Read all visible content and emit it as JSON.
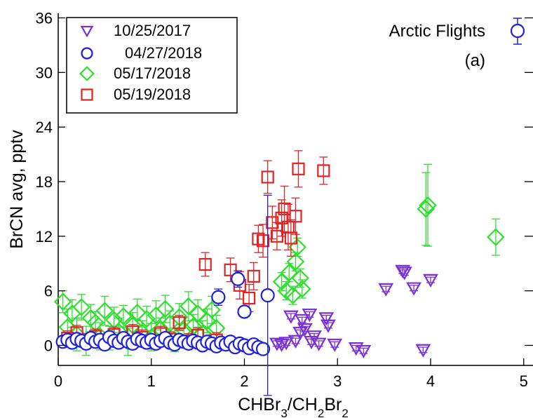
{
  "chart_data": {
    "type": "scatter",
    "xlim": [
      0,
      5.1
    ],
    "ylim": [
      -2.2,
      36.5
    ],
    "x_ticks": [
      "0",
      "1",
      "2",
      "3",
      "4",
      "5"
    ],
    "y_ticks": [
      "0",
      "6",
      "12",
      "18",
      "24",
      "30",
      "36"
    ],
    "xlabel": {
      "base1": "CHBr",
      "sub1": "3",
      "mid": "/CH",
      "sub2": "2",
      "base2": "Br",
      "sub3": "2"
    },
    "ylabel": "BrCN avg, pptv",
    "grid": false,
    "legend_position": "top-left",
    "annotation_text": "Arctic Flights",
    "panel_label": "(a)",
    "series": [
      {
        "name": "10/25/2017",
        "marker": "triangle-down",
        "color": "#7b2fd6",
        "points": [
          [
            2.35,
            0.2,
            0.3
          ],
          [
            2.4,
            0.1,
            0.3
          ],
          [
            2.45,
            0.3,
            0.3
          ],
          [
            2.5,
            3.2,
            0.3
          ],
          [
            2.55,
            0.5,
            0.3
          ],
          [
            2.6,
            1.4,
            0.3
          ],
          [
            2.62,
            2.8,
            0.3
          ],
          [
            2.65,
            1.8,
            0.3
          ],
          [
            2.7,
            3.4,
            0.3
          ],
          [
            2.72,
            0.4,
            0.3
          ],
          [
            2.75,
            1.0,
            0.3
          ],
          [
            2.8,
            0.2,
            0.3
          ],
          [
            2.88,
            3.0,
            0.3
          ],
          [
            2.9,
            2.2,
            0.3
          ],
          [
            2.97,
            0.1,
            0.3
          ],
          [
            3.2,
            -0.3,
            0.3
          ],
          [
            3.28,
            -0.6,
            0.3
          ],
          [
            3.52,
            6.2,
            0.3
          ],
          [
            3.7,
            8.2,
            0.3
          ],
          [
            3.72,
            8.0,
            0.3
          ],
          [
            3.82,
            6.3,
            0.3
          ],
          [
            3.92,
            -0.5,
            0.3
          ],
          [
            4.0,
            7.2,
            0.3
          ]
        ]
      },
      {
        "name": "04/27/2018",
        "marker": "circle",
        "color": "#1f1fe0",
        "points": [
          [
            0.05,
            0.4,
            0.4
          ],
          [
            0.1,
            0.6,
            0.4
          ],
          [
            0.15,
            0.3,
            0.4
          ],
          [
            0.2,
            0.7,
            0.4
          ],
          [
            0.25,
            0.5,
            0.4
          ],
          [
            0.3,
            0.2,
            0.4
          ],
          [
            0.35,
            0.8,
            0.4
          ],
          [
            0.4,
            0.4,
            0.4
          ],
          [
            0.45,
            0.6,
            0.4
          ],
          [
            0.5,
            0.1,
            0.4
          ],
          [
            0.55,
            0.9,
            0.4
          ],
          [
            0.6,
            0.5,
            0.4
          ],
          [
            0.65,
            0.3,
            0.4
          ],
          [
            0.7,
            0.8,
            0.4
          ],
          [
            0.75,
            0.4,
            0.4
          ],
          [
            0.8,
            0.2,
            0.4
          ],
          [
            0.85,
            0.7,
            0.4
          ],
          [
            0.9,
            0.5,
            0.4
          ],
          [
            0.95,
            0.3,
            0.4
          ],
          [
            1.0,
            0.6,
            0.4
          ],
          [
            1.05,
            0.2,
            0.4
          ],
          [
            1.1,
            0.5,
            0.4
          ],
          [
            1.15,
            0.8,
            0.4
          ],
          [
            1.2,
            0.3,
            0.4
          ],
          [
            1.25,
            0.1,
            0.4
          ],
          [
            1.3,
            0.6,
            0.4
          ],
          [
            1.35,
            0.4,
            0.4
          ],
          [
            1.4,
            0.2,
            0.4
          ],
          [
            1.45,
            0.5,
            0.4
          ],
          [
            1.5,
            0.3,
            0.4
          ],
          [
            1.55,
            0.0,
            0.4
          ],
          [
            1.6,
            0.4,
            0.4
          ],
          [
            1.65,
            0.2,
            0.4
          ],
          [
            1.7,
            -0.1,
            0.4
          ],
          [
            1.75,
            0.3,
            0.4
          ],
          [
            1.8,
            0.1,
            0.4
          ],
          [
            1.85,
            0.4,
            0.4
          ],
          [
            1.9,
            -0.2,
            0.4
          ],
          [
            1.95,
            0.2,
            0.4
          ],
          [
            2.0,
            0.0,
            0.4
          ],
          [
            2.05,
            -0.3,
            0.4
          ],
          [
            2.1,
            0.1,
            0.4
          ],
          [
            2.15,
            -0.2,
            0.4
          ],
          [
            2.2,
            -0.4,
            0.4
          ],
          [
            1.72,
            5.3,
            0.9
          ],
          [
            1.93,
            7.3,
            0.9
          ],
          [
            2.0,
            3.7,
            0.6
          ],
          [
            2.25,
            5.5,
            11.0
          ]
        ]
      },
      {
        "name": "05/17/2018",
        "marker": "diamond",
        "color": "#2ee02e",
        "points": [
          [
            0.05,
            4.8,
            1.2
          ],
          [
            0.1,
            2.0,
            2.0
          ],
          [
            0.15,
            3.5,
            1.5
          ],
          [
            0.2,
            1.2,
            1.8
          ],
          [
            0.25,
            4.2,
            1.4
          ],
          [
            0.3,
            0.5,
            1.6
          ],
          [
            0.35,
            3.0,
            1.5
          ],
          [
            0.4,
            2.5,
            1.2
          ],
          [
            0.45,
            1.0,
            1.5
          ],
          [
            0.5,
            3.8,
            1.6
          ],
          [
            0.55,
            0.8,
            1.3
          ],
          [
            0.6,
            2.8,
            1.4
          ],
          [
            0.65,
            1.5,
            1.5
          ],
          [
            0.7,
            3.2,
            1.2
          ],
          [
            0.75,
            0.4,
            1.5
          ],
          [
            0.8,
            2.2,
            1.4
          ],
          [
            0.85,
            3.6,
            1.5
          ],
          [
            0.9,
            1.4,
            1.3
          ],
          [
            0.95,
            2.9,
            1.4
          ],
          [
            1.0,
            0.9,
            1.5
          ],
          [
            1.05,
            3.3,
            1.6
          ],
          [
            1.1,
            1.8,
            1.2
          ],
          [
            1.15,
            4.0,
            1.5
          ],
          [
            1.2,
            2.4,
            1.4
          ],
          [
            1.25,
            0.6,
            1.3
          ],
          [
            1.3,
            3.1,
            1.5
          ],
          [
            1.35,
            1.7,
            1.4
          ],
          [
            1.4,
            4.3,
            1.6
          ],
          [
            1.45,
            2.1,
            1.3
          ],
          [
            1.5,
            3.5,
            1.5
          ],
          [
            1.55,
            1.3,
            1.4
          ],
          [
            1.6,
            2.7,
            1.3
          ],
          [
            1.65,
            3.9,
            1.5
          ],
          [
            1.7,
            1.9,
            1.4
          ],
          [
            2.4,
            7.0,
            1.0
          ],
          [
            2.45,
            6.0,
            1.0
          ],
          [
            2.48,
            8.0,
            1.0
          ],
          [
            2.52,
            5.5,
            1.0
          ],
          [
            2.55,
            9.2,
            1.0
          ],
          [
            2.57,
            10.8,
            1.0
          ],
          [
            2.6,
            7.4,
            1.0
          ],
          [
            2.62,
            6.2,
            1.0
          ],
          [
            3.95,
            15.0,
            4.0
          ],
          [
            3.97,
            15.4,
            4.5
          ],
          [
            4.7,
            11.9,
            2.0
          ]
        ]
      },
      {
        "name": "05/19/2018",
        "marker": "square",
        "color": "#e02424",
        "points": [
          [
            0.1,
            0.8,
            0.8
          ],
          [
            0.2,
            1.4,
            0.8
          ],
          [
            0.3,
            0.5,
            0.8
          ],
          [
            0.4,
            1.0,
            0.8
          ],
          [
            0.5,
            0.3,
            0.8
          ],
          [
            0.6,
            1.2,
            0.8
          ],
          [
            0.7,
            0.6,
            0.8
          ],
          [
            0.8,
            1.5,
            0.8
          ],
          [
            0.9,
            0.9,
            0.8
          ],
          [
            1.0,
            0.4,
            0.8
          ],
          [
            1.1,
            1.3,
            0.8
          ],
          [
            1.2,
            0.7,
            0.8
          ],
          [
            1.3,
            2.5,
            0.8
          ],
          [
            1.4,
            0.5,
            0.8
          ],
          [
            1.5,
            1.1,
            0.8
          ],
          [
            1.58,
            8.9,
            1.3
          ],
          [
            1.7,
            0.6,
            0.8
          ],
          [
            1.85,
            8.3,
            1.3
          ],
          [
            1.95,
            6.6,
            1.5
          ],
          [
            2.05,
            5.2,
            1.5
          ],
          [
            2.1,
            7.6,
            1.5
          ],
          [
            2.15,
            11.7,
            1.5
          ],
          [
            2.2,
            11.5,
            1.8
          ],
          [
            2.25,
            18.5,
            1.8
          ],
          [
            2.3,
            13.5,
            1.8
          ],
          [
            2.35,
            12.0,
            1.5
          ],
          [
            2.4,
            14.0,
            2.0
          ],
          [
            2.43,
            15.0,
            2.5
          ],
          [
            2.47,
            13.0,
            2.5
          ],
          [
            2.5,
            11.8,
            2.0
          ],
          [
            2.55,
            14.2,
            2.0
          ],
          [
            2.58,
            19.4,
            2.0
          ],
          [
            2.85,
            19.2,
            1.5
          ]
        ]
      }
    ]
  }
}
